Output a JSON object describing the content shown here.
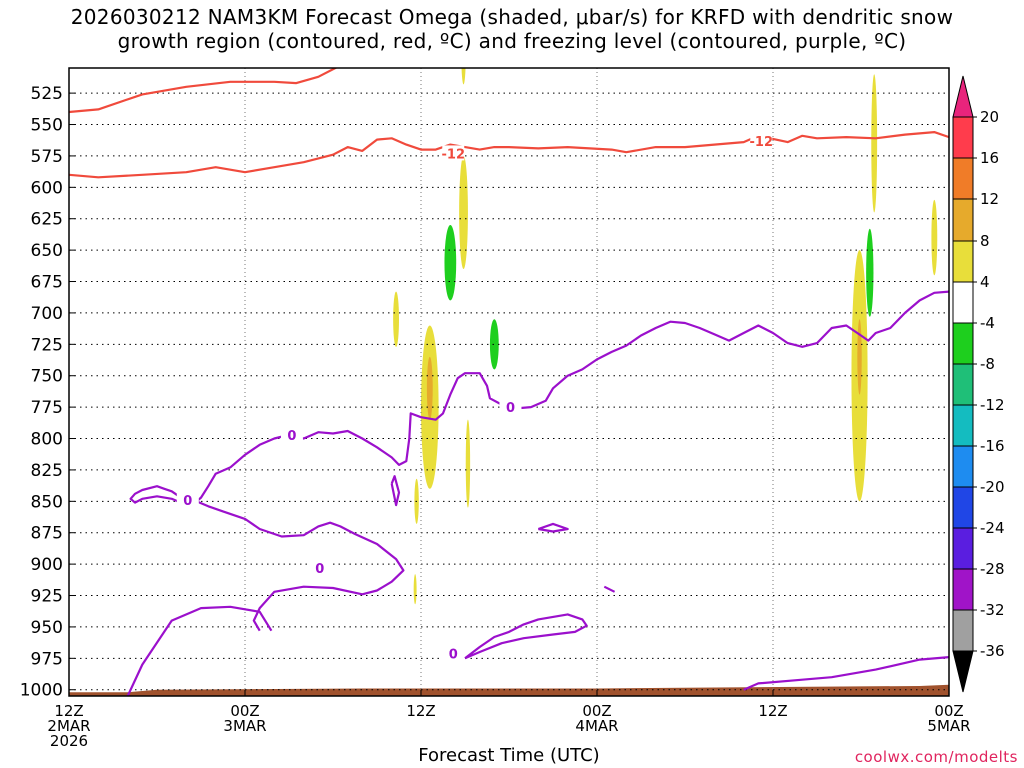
{
  "title": {
    "line1": "2026030212 NAM3KM Forecast Omega (shaded, μbar/s) for KRFD with dendritic snow",
    "line2": "growth region (contoured, red, ºC) and freezing level (contoured, purple, ºC)"
  },
  "credit": "coolwx.com/modelts",
  "chart_data": {
    "type": "heatmap",
    "xlabel": "Forecast Time (UTC)",
    "x_ticks": [
      {
        "hour": 0,
        "lines": [
          "12Z",
          "2MAR",
          "2026"
        ]
      },
      {
        "hour": 12,
        "lines": [
          "00Z",
          "3MAR"
        ]
      },
      {
        "hour": 24,
        "lines": [
          "12Z"
        ]
      },
      {
        "hour": 36,
        "lines": [
          "00Z",
          "4MAR"
        ]
      },
      {
        "hour": 48,
        "lines": [
          "12Z"
        ]
      },
      {
        "hour": 60,
        "lines": [
          "00Z",
          "5MAR"
        ]
      }
    ],
    "xlim": [
      0,
      60
    ],
    "y_ticks": [
      "525",
      "550",
      "575",
      "600",
      "625",
      "650",
      "675",
      "700",
      "725",
      "750",
      "775",
      "800",
      "825",
      "850",
      "875",
      "900",
      "925",
      "950",
      "975",
      "1000"
    ],
    "ylim": [
      505,
      1005
    ],
    "grid": true,
    "colorbar": {
      "labels": [
        "20",
        "16",
        "12",
        "8",
        "4",
        "-4",
        "-8",
        "-12",
        "-16",
        "-20",
        "-24",
        "-28",
        "-32",
        "-36"
      ],
      "bands": [
        {
          "from": 16,
          "to": 20,
          "color": "#ff3c4c"
        },
        {
          "from": 12,
          "to": 16,
          "color": "#f07c28"
        },
        {
          "from": 8,
          "to": 12,
          "color": "#e6aa2c"
        },
        {
          "from": 4,
          "to": 8,
          "color": "#e8de3a"
        },
        {
          "from": -4,
          "to": 4,
          "color": "#ffffff"
        },
        {
          "from": -8,
          "to": -4,
          "color": "#1ecf1e"
        },
        {
          "from": -12,
          "to": -8,
          "color": "#1fbf78"
        },
        {
          "from": -16,
          "to": -12,
          "color": "#14bcc0"
        },
        {
          "from": -20,
          "to": -16,
          "color": "#1e8cf0"
        },
        {
          "from": -24,
          "to": -20,
          "color": "#2046e6"
        },
        {
          "from": -28,
          "to": -24,
          "color": "#5a1ee0"
        },
        {
          "from": -32,
          "to": -28,
          "color": "#a014c8"
        },
        {
          "from": -36,
          "to": -32,
          "color": "#a0a0a0"
        }
      ],
      "top_arrow_color": "#e8247c",
      "bottom_arrow_color": "#000000"
    },
    "contour_colors": {
      "snow_growth": "#f04a3c",
      "freezing": "#9b10cc",
      "terrain": "#a0522d"
    },
    "contour_labels": {
      "snow_growth": "-12",
      "freezing": "0"
    },
    "snow_growth_contours": [
      [
        [
          0,
          540
        ],
        [
          2,
          538
        ],
        [
          5,
          526
        ],
        [
          8,
          520
        ],
        [
          11,
          516
        ],
        [
          14,
          516
        ],
        [
          15.5,
          517
        ],
        [
          17,
          512
        ],
        [
          19,
          500
        ]
      ],
      [
        [
          0,
          590
        ],
        [
          2,
          592
        ],
        [
          5,
          590
        ],
        [
          8,
          588
        ],
        [
          10,
          584
        ],
        [
          12,
          588
        ],
        [
          14,
          584
        ],
        [
          16,
          580
        ],
        [
          18,
          574
        ],
        [
          19,
          568
        ],
        [
          20,
          571
        ],
        [
          21,
          562
        ],
        [
          22,
          561
        ],
        [
          23,
          566
        ],
        [
          24,
          570
        ],
        [
          25,
          570
        ],
        [
          26,
          566
        ],
        [
          27,
          568
        ],
        [
          28,
          570
        ],
        [
          29,
          568
        ],
        [
          30,
          568
        ],
        [
          32,
          569
        ],
        [
          34,
          568
        ],
        [
          37,
          570
        ],
        [
          38,
          572
        ],
        [
          40,
          568
        ],
        [
          42,
          568
        ],
        [
          44,
          566
        ],
        [
          46,
          564
        ],
        [
          47,
          559
        ],
        [
          49,
          564
        ],
        [
          50,
          559
        ],
        [
          51,
          561
        ],
        [
          53,
          560
        ],
        [
          55,
          561
        ],
        [
          57,
          558
        ],
        [
          59,
          556
        ],
        [
          60,
          560
        ]
      ]
    ],
    "freezing_contours": [
      [
        [
          4,
          1005
        ],
        [
          5,
          980
        ],
        [
          7,
          945
        ],
        [
          9,
          935
        ],
        [
          11,
          934
        ],
        [
          13,
          938
        ],
        [
          13.8,
          953
        ]
      ],
      [
        [
          13,
          953
        ],
        [
          12.6,
          945
        ],
        [
          13,
          935
        ],
        [
          14,
          922
        ],
        [
          16,
          918
        ],
        [
          18,
          919
        ],
        [
          20,
          924
        ],
        [
          21,
          921
        ],
        [
          22,
          914
        ],
        [
          22.8,
          905
        ],
        [
          22.3,
          896
        ],
        [
          21,
          884
        ],
        [
          19.5,
          876
        ],
        [
          18.5,
          870
        ],
        [
          17.8,
          867
        ],
        [
          17,
          870
        ],
        [
          16,
          877
        ],
        [
          14.5,
          878
        ],
        [
          13,
          872
        ],
        [
          12,
          864
        ],
        [
          10.5,
          858
        ],
        [
          9.5,
          854
        ],
        [
          8.5,
          849
        ],
        [
          7.5,
          846
        ],
        [
          7,
          842
        ],
        [
          6.5,
          840
        ],
        [
          6,
          838
        ],
        [
          5,
          841
        ],
        [
          4.5,
          844
        ],
        [
          4.2,
          848
        ],
        [
          4.5,
          851
        ],
        [
          5,
          848
        ],
        [
          6,
          846
        ],
        [
          7,
          848
        ],
        [
          7.8,
          852
        ],
        [
          8.5,
          852
        ],
        [
          9,
          847
        ],
        [
          9.5,
          838
        ],
        [
          10,
          828
        ],
        [
          11,
          823
        ],
        [
          12,
          813
        ],
        [
          13,
          805
        ],
        [
          14,
          800
        ],
        [
          15,
          797
        ],
        [
          16,
          800
        ],
        [
          17,
          795
        ],
        [
          18,
          796
        ],
        [
          19,
          794
        ],
        [
          20,
          800
        ],
        [
          21,
          807
        ],
        [
          22,
          815
        ],
        [
          22.5,
          821
        ],
        [
          23,
          818
        ],
        [
          23.2,
          800
        ],
        [
          23.3,
          780
        ],
        [
          24,
          783
        ],
        [
          25,
          785
        ],
        [
          25.5,
          780
        ],
        [
          26,
          765
        ],
        [
          26.5,
          752
        ],
        [
          27,
          748
        ],
        [
          28,
          748
        ],
        [
          28.5,
          758
        ],
        [
          28.7,
          768
        ],
        [
          29.5,
          773
        ],
        [
          30.5,
          776
        ],
        [
          31.5,
          775
        ],
        [
          32.5,
          770
        ],
        [
          33,
          760
        ],
        [
          34,
          750
        ],
        [
          35,
          745
        ],
        [
          36,
          737
        ],
        [
          37,
          731
        ],
        [
          38,
          726
        ],
        [
          39,
          718
        ],
        [
          40,
          712
        ],
        [
          41,
          707
        ],
        [
          42,
          708
        ],
        [
          43,
          712
        ],
        [
          44,
          717
        ],
        [
          45,
          722
        ],
        [
          46,
          716
        ],
        [
          47,
          710
        ],
        [
          48,
          716
        ],
        [
          49,
          724
        ],
        [
          50,
          727
        ],
        [
          51,
          724
        ],
        [
          52,
          712
        ],
        [
          53,
          710
        ],
        [
          54,
          718
        ],
        [
          54.5,
          722
        ],
        [
          55,
          716
        ],
        [
          56,
          712
        ],
        [
          57,
          700
        ],
        [
          58,
          690
        ],
        [
          59,
          684
        ],
        [
          60,
          683
        ]
      ],
      [
        [
          22,
          836
        ],
        [
          22.2,
          830
        ],
        [
          22.5,
          843
        ],
        [
          22.3,
          853
        ],
        [
          22,
          836
        ]
      ],
      [
        [
          27,
          975
        ],
        [
          28,
          966
        ],
        [
          29,
          958
        ],
        [
          30,
          954
        ],
        [
          31,
          948
        ],
        [
          32,
          944
        ],
        [
          33,
          942
        ],
        [
          34,
          940
        ],
        [
          35,
          944
        ],
        [
          35.3,
          949
        ],
        [
          34.5,
          954
        ],
        [
          33,
          956
        ],
        [
          31,
          959
        ],
        [
          29.5,
          963
        ],
        [
          28,
          970
        ],
        [
          27,
          975
        ]
      ],
      [
        [
          32,
          872
        ],
        [
          33,
          868
        ],
        [
          34,
          872
        ],
        [
          33,
          874
        ],
        [
          32,
          872
        ]
      ],
      [
        [
          36.5,
          918
        ],
        [
          37.2,
          922
        ]
      ],
      [
        [
          46,
          1000
        ],
        [
          47,
          995
        ],
        [
          50,
          992
        ],
        [
          52,
          990
        ],
        [
          55,
          984
        ],
        [
          58,
          976
        ],
        [
          60,
          974
        ]
      ]
    ],
    "omega_patches": [
      {
        "level": -4,
        "center": [
          22.7,
          570
        ],
        "rx": 0.8,
        "ry": 55
      },
      {
        "level": -4,
        "center": [
          25.8,
          630
        ],
        "rx": 1.0,
        "ry": 70
      },
      {
        "level": -4,
        "center": [
          28.1,
          728
        ],
        "rx": 0.8,
        "ry": 45
      },
      {
        "level": -4,
        "center": [
          26.4,
          710
        ],
        "rx": 1.2,
        "ry": 60
      },
      {
        "level": -4,
        "center": [
          21.7,
          650
        ],
        "rx": 0.25,
        "ry": 28
      },
      {
        "level": -4,
        "center": [
          25.9,
          908
        ],
        "rx": 0.5,
        "ry": 45
      },
      {
        "level": -4,
        "center": [
          29.2,
          890
        ],
        "rx": 0.6,
        "ry": 85
      },
      {
        "level": -4,
        "center": [
          54.4,
          770
        ],
        "rx": 0.7,
        "ry": 120
      },
      {
        "level": -4,
        "center": [
          53.3,
          590
        ],
        "rx": 0.4,
        "ry": 40
      },
      {
        "level": -4,
        "center": [
          53.4,
          920
        ],
        "rx": 0.8,
        "ry": 70
      },
      {
        "level": -4,
        "center": [
          59.8,
          910
        ],
        "rx": 0.5,
        "ry": 70
      },
      {
        "level": -4,
        "center": [
          59.9,
          545
        ],
        "rx": 0.15,
        "ry": 40
      },
      {
        "level": -8,
        "center": [
          26.0,
          660
        ],
        "rx": 0.4,
        "ry": 30
      },
      {
        "level": -8,
        "center": [
          29.0,
          725
        ],
        "rx": 0.3,
        "ry": 20
      },
      {
        "level": -8,
        "center": [
          54.6,
          668
        ],
        "rx": 0.25,
        "ry": 35
      },
      {
        "level": 4,
        "center": [
          26.9,
          620
        ],
        "rx": 0.3,
        "ry": 45
      },
      {
        "level": 4,
        "center": [
          24.6,
          775
        ],
        "rx": 0.6,
        "ry": 65
      },
      {
        "level": 4,
        "center": [
          22.3,
          705
        ],
        "rx": 0.2,
        "ry": 22
      },
      {
        "level": 4,
        "center": [
          27.2,
          820
        ],
        "rx": 0.15,
        "ry": 35
      },
      {
        "level": 4,
        "center": [
          26.9,
          496
        ],
        "rx": 0.15,
        "ry": 22
      },
      {
        "level": 4,
        "center": [
          53.9,
          750
        ],
        "rx": 0.55,
        "ry": 100
      },
      {
        "level": 4,
        "center": [
          54.9,
          565
        ],
        "rx": 0.2,
        "ry": 55
      },
      {
        "level": 4,
        "center": [
          59.0,
          640
        ],
        "rx": 0.2,
        "ry": 30
      },
      {
        "level": 4,
        "center": [
          23.7,
          850
        ],
        "rx": 0.15,
        "ry": 18
      },
      {
        "level": 4,
        "center": [
          23.6,
          920
        ],
        "rx": 0.1,
        "ry": 12
      },
      {
        "level": 8,
        "center": [
          24.6,
          760
        ],
        "rx": 0.2,
        "ry": 25
      },
      {
        "level": 8,
        "center": [
          53.9,
          735
        ],
        "rx": 0.15,
        "ry": 30
      }
    ]
  }
}
